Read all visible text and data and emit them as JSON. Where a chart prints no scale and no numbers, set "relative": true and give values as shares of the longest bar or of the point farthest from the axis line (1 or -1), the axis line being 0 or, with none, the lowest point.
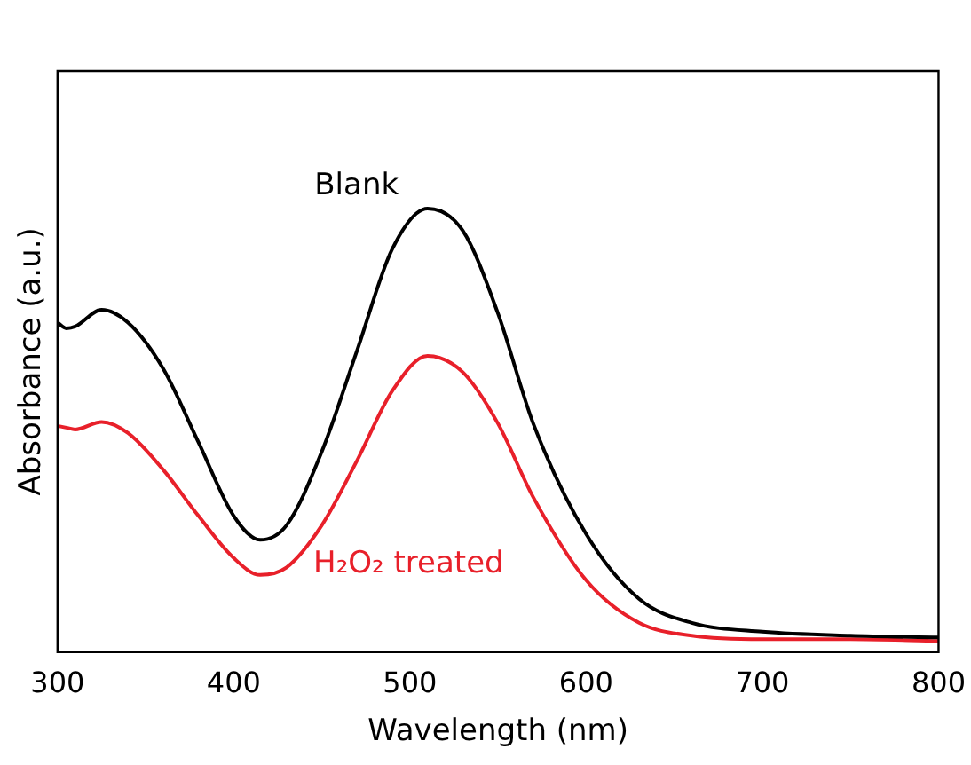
{
  "chart_data": {
    "type": "line",
    "relative": true,
    "xlabel": "Wavelength (nm)",
    "ylabel": "Absorbance (a.u.)",
    "xlim": [
      300,
      800
    ],
    "xticks": [
      300,
      400,
      500,
      600,
      700,
      800
    ],
    "grid": false,
    "legend": false,
    "marker": "none",
    "line_style": "solid",
    "x": [
      300,
      305,
      310,
      325,
      340,
      360,
      380,
      400,
      415,
      430,
      450,
      470,
      490,
      510,
      530,
      550,
      570,
      600,
      630,
      660,
      700,
      750,
      800
    ],
    "series": [
      {
        "name": "Blank",
        "color": "#000000",
        "values": [
          0.743,
          0.73,
          0.734,
          0.772,
          0.743,
          0.639,
          0.473,
          0.307,
          0.253,
          0.286,
          0.452,
          0.68,
          0.909,
          1,
          0.95,
          0.763,
          0.515,
          0.266,
          0.12,
          0.066,
          0.046,
          0.037,
          0.033
        ]
      },
      {
        "name": "H₂O₂ treated",
        "color": "#e8202a",
        "values": [
          0.51,
          0.506,
          0.502,
          0.519,
          0.494,
          0.411,
          0.307,
          0.212,
          0.174,
          0.191,
          0.286,
          0.432,
          0.589,
          0.668,
          0.631,
          0.515,
          0.349,
          0.162,
          0.066,
          0.037,
          0.029,
          0.029,
          0.025
        ]
      }
    ]
  }
}
